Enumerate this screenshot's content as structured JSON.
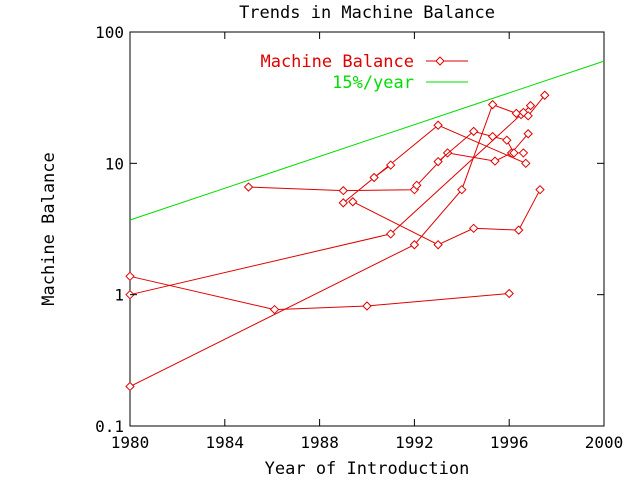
{
  "chart_data": {
    "type": "line",
    "title": "Trends in Machine Balance",
    "xlabel": "Year of Introduction",
    "ylabel": "Machine Balance",
    "xlim": [
      1980,
      2000
    ],
    "ylim": [
      0.1,
      100
    ],
    "yscale": "log",
    "x_ticks": [
      "1980",
      "1984",
      "1988",
      "1992",
      "1996",
      "2000"
    ],
    "y_ticks": [
      "0.1",
      "1",
      "10",
      "100"
    ],
    "grid": false,
    "legend": "top-center",
    "colors": {
      "data": "#e00000",
      "trend": "#00dd00",
      "axes": "#000000"
    },
    "series": [
      {
        "name": "Machine Balance",
        "marker": "diamond",
        "segments": [
          [
            [
              1985,
              6.6
            ],
            [
              1989,
              6.2
            ],
            [
              1992,
              6.3
            ],
            [
              1992.1,
              6.8
            ],
            [
              1993.4,
              12.0
            ],
            [
              1995.4,
              10.4
            ],
            [
              1996.1,
              12.0
            ],
            [
              1996.8,
              16.8
            ]
          ],
          [
            [
              1989,
              5.0
            ],
            [
              1993,
              19.5
            ],
            [
              1996.7,
              10.0
            ]
          ],
          [
            [
              1989.4,
              5.1
            ],
            [
              1993,
              2.4
            ],
            [
              1994.5,
              3.2
            ],
            [
              1996.4,
              3.1
            ],
            [
              1997.3,
              6.3
            ]
          ],
          [
            [
              1980,
              1.0
            ],
            [
              1991,
              2.9
            ],
            [
              1996.5,
              23.5
            ],
            [
              1996.9,
              27.5
            ]
          ],
          [
            [
              1980,
              0.2
            ],
            [
              1992,
              2.4
            ],
            [
              1994,
              6.3
            ],
            [
              1995.3,
              28.0
            ],
            [
              1996.3,
              24.0
            ],
            [
              1996.6,
              24.4
            ],
            [
              1996.8,
              23.0
            ],
            [
              1997.5,
              33.0
            ]
          ],
          [
            [
              1990.3,
              7.8
            ],
            [
              1991,
              9.7
            ]
          ],
          [
            [
              1993,
              10.3
            ],
            [
              1994.5,
              17.5
            ],
            [
              1995.3,
              16.0
            ],
            [
              1995.9,
              15.0
            ],
            [
              1996.2,
              12.0
            ],
            [
              1996.6,
              12.0
            ]
          ],
          [
            [
              1980,
              1.38
            ],
            [
              1986.1,
              0.77
            ],
            [
              1990,
              0.82
            ],
            [
              1996,
              1.02
            ]
          ]
        ]
      },
      {
        "name": "15%/year",
        "marker": "none",
        "segments": [
          [
            [
              1980,
              3.7
            ],
            [
              2000,
              60.0
            ]
          ]
        ]
      }
    ]
  }
}
